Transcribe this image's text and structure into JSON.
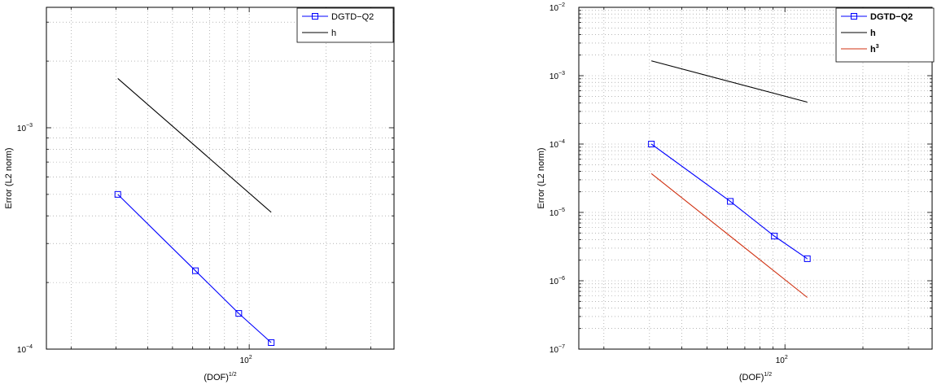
{
  "chart_data": [
    {
      "type": "line",
      "xscale": "log",
      "yscale": "log",
      "xlim": [
        16,
        370
      ],
      "ylim": [
        0.0001,
        0.0035
      ],
      "grid": true,
      "xlabel": "(DOF)",
      "xlabel_sup": "1/2",
      "ylabel": "Error (L2 norm)",
      "xticks": [
        {
          "base": "10",
          "exp": "2",
          "value": 100
        }
      ],
      "yticks": [
        {
          "base": "10",
          "exp": "−4",
          "value": 0.0001
        },
        {
          "base": "10",
          "exp": "−3",
          "value": 0.001
        }
      ],
      "legend_position": "top-right",
      "legend_bold": false,
      "series": [
        {
          "name": "DGTD−Q2",
          "name_sup": "",
          "color": "#0000ff",
          "marker": "square",
          "x": [
            30.5,
            61.5,
            91,
            122
          ],
          "y": [
            0.0005,
            0.000226,
            0.000145,
            0.000107
          ]
        },
        {
          "name": "h",
          "name_sup": "",
          "color": "#000000",
          "marker": "none",
          "x": [
            30.5,
            122
          ],
          "y": [
            0.00167,
            0.000415
          ]
        }
      ]
    },
    {
      "type": "line",
      "xscale": "log",
      "yscale": "log",
      "xlim": [
        16,
        370
      ],
      "ylim": [
        1e-07,
        0.01
      ],
      "grid": true,
      "xlabel": "(DOF)",
      "xlabel_sup": "1/2",
      "ylabel": "Error (L2 norm)",
      "xticks": [
        {
          "base": "10",
          "exp": "2",
          "value": 100
        }
      ],
      "yticks": [
        {
          "base": "10",
          "exp": "−7",
          "value": 1e-07
        },
        {
          "base": "10",
          "exp": "−6",
          "value": 1e-06
        },
        {
          "base": "10",
          "exp": "−5",
          "value": 1e-05
        },
        {
          "base": "10",
          "exp": "−4",
          "value": 0.0001
        },
        {
          "base": "10",
          "exp": "−3",
          "value": 0.001
        },
        {
          "base": "10",
          "exp": "−2",
          "value": 0.01
        }
      ],
      "legend_position": "top-right",
      "legend_bold": true,
      "series": [
        {
          "name": "DGTD−Q2",
          "name_sup": "",
          "color": "#0000ff",
          "marker": "square",
          "x": [
            30.5,
            61.5,
            91,
            122
          ],
          "y": [
            0.0001,
            1.45e-05,
            4.5e-06,
            2.1e-06
          ]
        },
        {
          "name": "h",
          "name_sup": "",
          "color": "#000000",
          "marker": "none",
          "x": [
            30.5,
            122
          ],
          "y": [
            0.00165,
            0.00041
          ]
        },
        {
          "name": "h",
          "name_sup": "3",
          "color": "#d03010",
          "marker": "none",
          "x": [
            30.5,
            122
          ],
          "y": [
            3.7e-05,
            5.7e-07
          ]
        }
      ]
    }
  ]
}
